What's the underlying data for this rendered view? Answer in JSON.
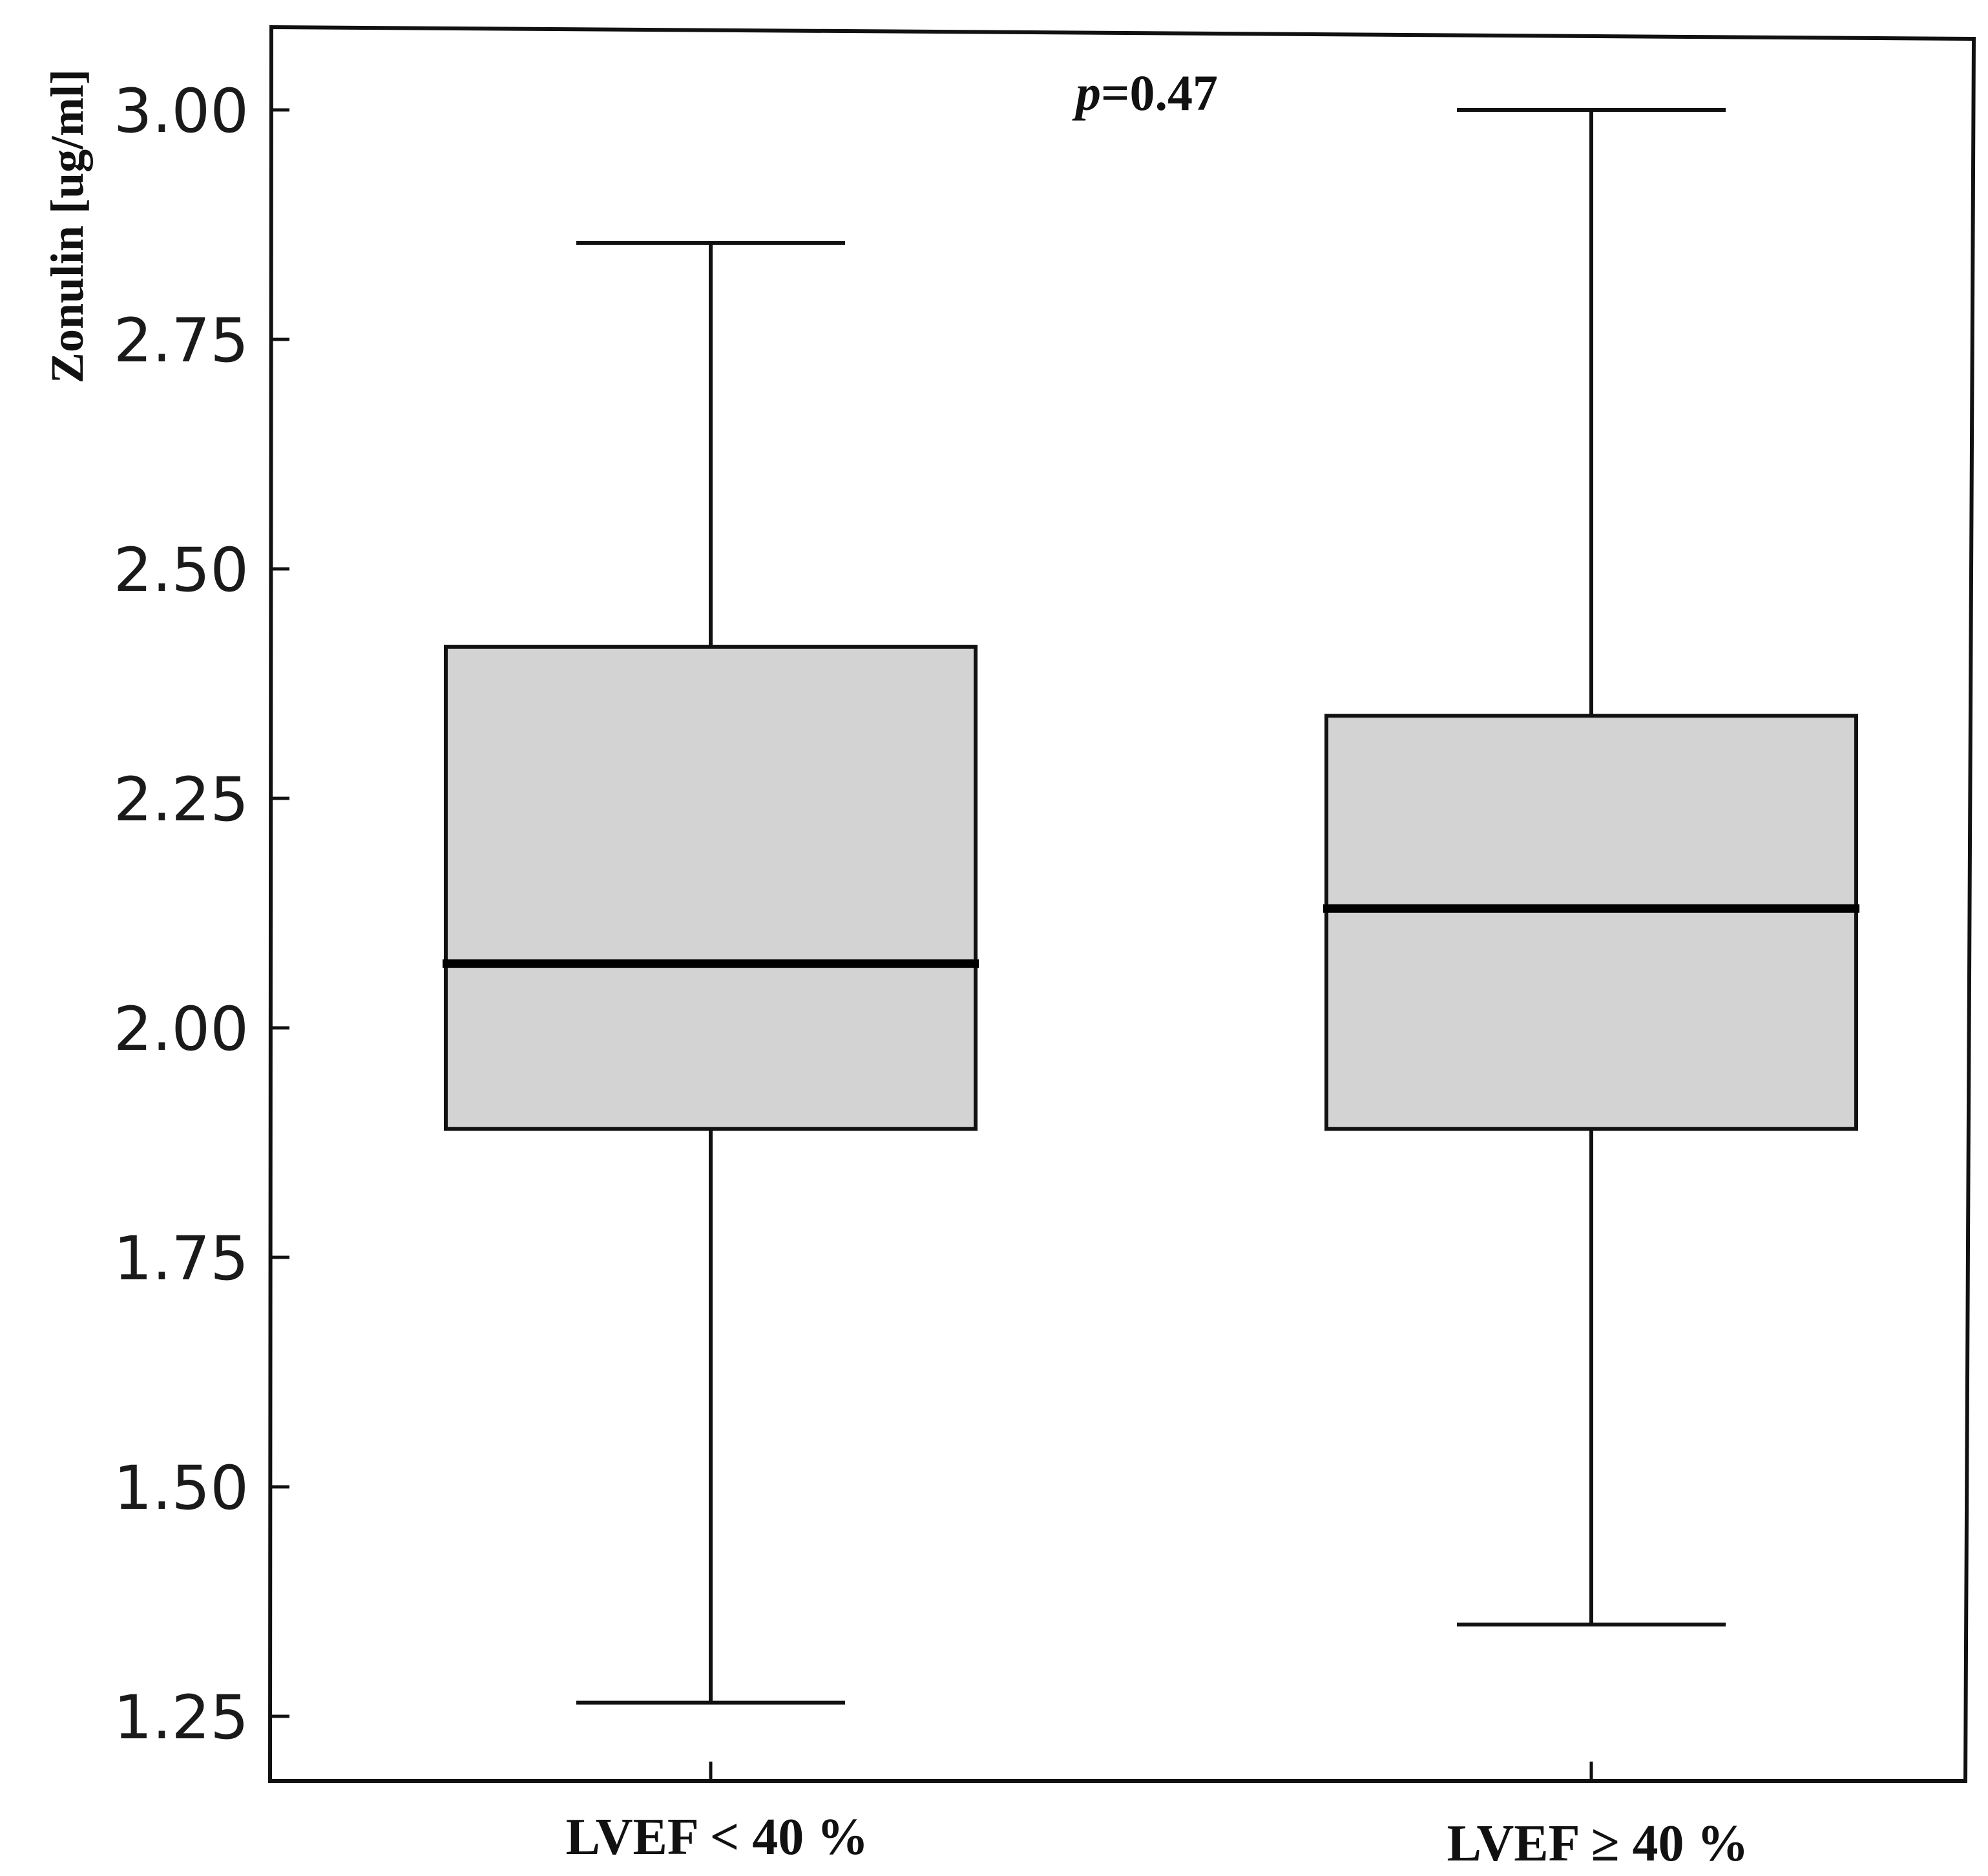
{
  "chart_data": {
    "type": "boxplot",
    "title": "",
    "xlabel": "",
    "ylabel": "Zonulin [ug/ml]",
    "ylim": [
      1.215,
      3.09
    ],
    "yticks": [
      1.25,
      1.5,
      1.75,
      2.0,
      2.25,
      2.5,
      2.75,
      3.0
    ],
    "ytick_labels": [
      "1.25",
      "1.50",
      "1.75",
      "2.00",
      "2.25",
      "2.50",
      "2.75",
      "3.00"
    ],
    "categories": [
      "LVEF < 40 %",
      "LVEF ≥ 40 %"
    ],
    "boxes": [
      {
        "category": "LVEF < 40 %",
        "min": 1.265,
        "q1": 1.89,
        "median": 2.07,
        "q3": 2.415,
        "max": 2.855
      },
      {
        "category": "LVEF ≥ 40 %",
        "min": 1.35,
        "q1": 1.89,
        "median": 2.13,
        "q3": 2.34,
        "max": 3.0
      }
    ],
    "annotation": {
      "p_symbol": "p",
      "p_text": "=0.47"
    },
    "colors": {
      "box_fill": "#d3d3d3",
      "line": "#111111",
      "median": "#000000"
    },
    "grid": false
  }
}
